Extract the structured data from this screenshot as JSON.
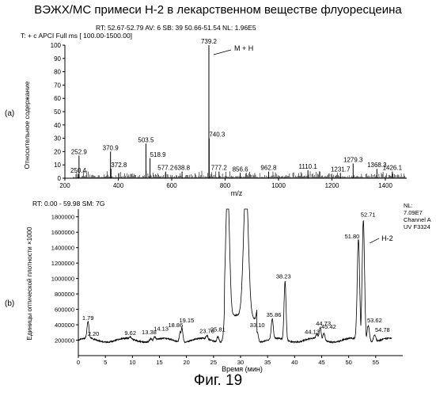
{
  "page": {
    "title": "ВЭЖХ/МС примеси Н-2 в лекарственном веществе флуоресцеина",
    "caption": "Фиг. 19"
  },
  "chart_data": [
    {
      "type": "line",
      "panel_label": "(a)",
      "header_line1": "RT: 52.67-52.79   AV: 6   SB: 39  50.66-51.54   NL: 1.96E5",
      "header_line2": "T: + c APCI Full ms [ 100.00-1500.00]",
      "ylabel": "Относительное содержание",
      "xlabel": "m/z",
      "xlim": [
        200,
        1480
      ],
      "ylim": [
        0,
        100
      ],
      "xticks": [
        200,
        400,
        600,
        800,
        1000,
        1200,
        1400
      ],
      "yticks": [
        0,
        10,
        20,
        30,
        40,
        50,
        60,
        70,
        80,
        90,
        100
      ],
      "peak_labels": [
        {
          "text": "250.4",
          "x": 250.4,
          "y": 3
        },
        {
          "text": "252.9",
          "x": 252.9,
          "y": 17
        },
        {
          "text": "370.9",
          "x": 370.9,
          "y": 20
        },
        {
          "text": "372.8",
          "x": 372.8,
          "y": 7
        },
        {
          "text": "503.5",
          "x": 503.5,
          "y": 26
        },
        {
          "text": "518.9",
          "x": 518.9,
          "y": 15
        },
        {
          "text": "577.2",
          "x": 577.2,
          "y": 5
        },
        {
          "text": "638.8",
          "x": 638.8,
          "y": 5
        },
        {
          "text": "739.2",
          "x": 739.2,
          "y": 100
        },
        {
          "text": "740.3",
          "x": 740.3,
          "y": 30
        },
        {
          "text": "777.2",
          "x": 777.2,
          "y": 5
        },
        {
          "text": "856.6",
          "x": 856.6,
          "y": 4
        },
        {
          "text": "962.8",
          "x": 962.8,
          "y": 5
        },
        {
          "text": "1110.1",
          "x": 1110.1,
          "y": 6
        },
        {
          "text": "1231.7",
          "x": 1231.7,
          "y": 4
        },
        {
          "text": "1279.3",
          "x": 1279.3,
          "y": 11
        },
        {
          "text": "1368.3",
          "x": 1368.3,
          "y": 7
        },
        {
          "text": "1426.1",
          "x": 1426.1,
          "y": 5
        }
      ],
      "annotation": {
        "text": "M + H",
        "x": 739.2,
        "y": 100
      }
    },
    {
      "type": "line",
      "panel_label": "(b)",
      "header_line1": "RT: 0.00 - 59.98   SM: 7G",
      "legend_lines": [
        "NL:",
        "7.09E7",
        "Channel A",
        "UV F3324"
      ],
      "ylabel": "Единицы оптической плотности ×1000",
      "xlabel": "Время (мин)",
      "xlim": [
        0,
        60
      ],
      "ylim": [
        0,
        1900000
      ],
      "xticks": [
        0,
        5,
        10,
        15,
        20,
        25,
        30,
        35,
        40,
        45,
        50,
        55
      ],
      "yticks": [
        200000,
        400000,
        600000,
        800000,
        1000000,
        1200000,
        1400000,
        1600000,
        1800000
      ],
      "peak_labels": [
        {
          "text": "1.79",
          "x": 1.79,
          "y": 420000
        },
        {
          "text": "2.20",
          "x": 2.2,
          "y": 215000
        },
        {
          "text": "9.62",
          "x": 9.62,
          "y": 225000
        },
        {
          "text": "13.38",
          "x": 13.38,
          "y": 235000
        },
        {
          "text": "14.13",
          "x": 14.13,
          "y": 240000
        },
        {
          "text": "18.86",
          "x": 18.86,
          "y": 330000
        },
        {
          "text": "19.15",
          "x": 19.15,
          "y": 390000
        },
        {
          "text": "23.78",
          "x": 23.78,
          "y": 250000
        },
        {
          "text": "25.81",
          "x": 25.81,
          "y": 270000
        },
        {
          "text": "33.10",
          "x": 33.1,
          "y": 330000
        },
        {
          "text": "35.86",
          "x": 35.86,
          "y": 460000
        },
        {
          "text": "38.23",
          "x": 38.23,
          "y": 960000
        },
        {
          "text": "44.13",
          "x": 44.13,
          "y": 260000
        },
        {
          "text": "44.73",
          "x": 44.73,
          "y": 350000
        },
        {
          "text": "45.42",
          "x": 45.42,
          "y": 290000
        },
        {
          "text": "51.80",
          "x": 51.8,
          "y": 1500000
        },
        {
          "text": "52.71",
          "x": 52.71,
          "y": 1760000
        },
        {
          "text": "53.62",
          "x": 53.62,
          "y": 410000
        },
        {
          "text": "54.78",
          "x": 54.78,
          "y": 290000
        }
      ],
      "annotation": {
        "text": "Н-2",
        "x": 52.71,
        "y": 1500000
      }
    }
  ]
}
